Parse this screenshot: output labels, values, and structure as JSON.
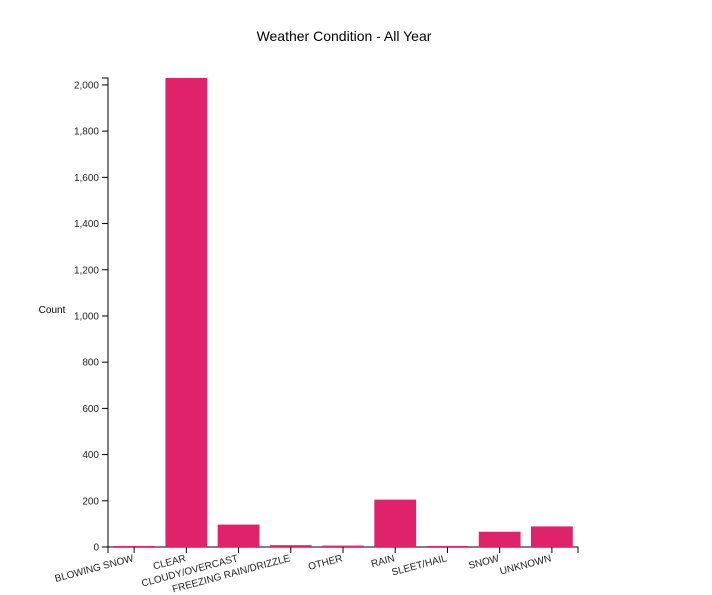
{
  "chart_data": {
    "type": "bar",
    "title": "Weather Condition - All Year",
    "xlabel": "",
    "ylabel": "Count",
    "categories": [
      "BLOWING SNOW",
      "CLEAR",
      "CLOUDY/OVERCAST",
      "FREEZING RAIN/DRIZZLE",
      "OTHER",
      "RAIN",
      "SLEET/HAIL",
      "SNOW",
      "UNKNOWN"
    ],
    "values": [
      3,
      2030,
      97,
      8,
      6,
      205,
      2,
      66,
      89
    ],
    "ylim": [
      0,
      2030
    ],
    "yticks": [
      0,
      200,
      400,
      600,
      800,
      1000,
      1200,
      1400,
      1600,
      1800,
      2000
    ],
    "ytick_labels": [
      "0",
      "200",
      "400",
      "600",
      "800",
      "1,000",
      "1,200",
      "1,400",
      "1,600",
      "1,800",
      "2,000"
    ],
    "grid": false,
    "legend": "none",
    "bar_color": "#e0226a",
    "axis_color": "#000000",
    "text_color": "#222222"
  }
}
